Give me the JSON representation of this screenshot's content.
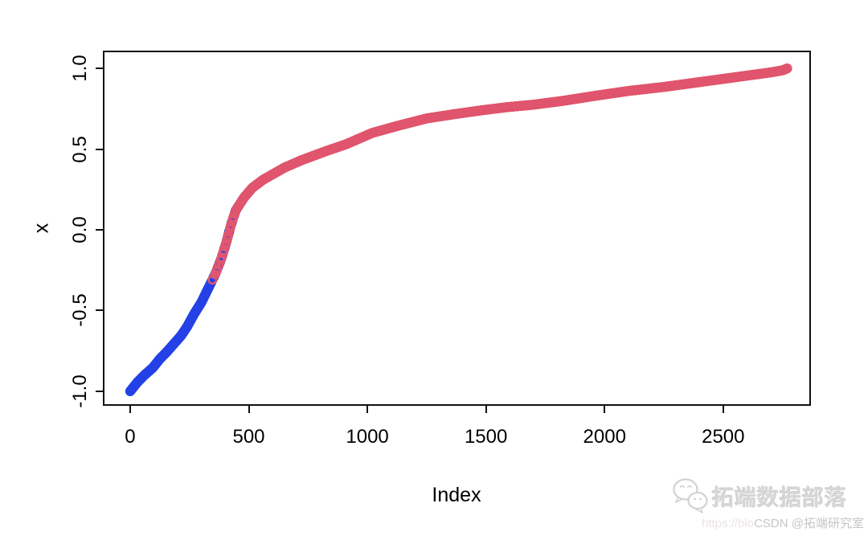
{
  "frame": {
    "border_color": "#111111",
    "background": "#ffffff"
  },
  "chart_data": {
    "type": "scatter",
    "title": "",
    "xlabel": "Index",
    "ylabel": "x",
    "grid": false,
    "legend": "none",
    "marker": "open-circle",
    "marker_radius": 4.8,
    "marker_stroke_width": 2.6,
    "xlim": [
      -115,
      2870
    ],
    "ylim": [
      -1.09,
      1.11
    ],
    "x_ticks": [
      {
        "value": 0,
        "label": "0"
      },
      {
        "value": 500,
        "label": "500"
      },
      {
        "value": 1000,
        "label": "1000"
      },
      {
        "value": 1500,
        "label": "1500"
      },
      {
        "value": 2000,
        "label": "2000"
      },
      {
        "value": 2500,
        "label": "2500"
      }
    ],
    "y_ticks": [
      {
        "value": -1.0,
        "label": "-1.0"
      },
      {
        "value": -0.5,
        "label": "-0.5"
      },
      {
        "value": 0.0,
        "label": "0.0"
      },
      {
        "value": 0.5,
        "label": "0.5"
      },
      {
        "value": 1.0,
        "label": "1.0"
      }
    ],
    "description": "Sorted values of x plotted against index; ~2770 points rising monotonically from -1 to 1. Lower segment drawn in blue, upper segment in rose-red, with the two colors interleaved around the sign-change region (index ~295-530).",
    "n_points": 2771,
    "color_mix_index_range": [
      295,
      530
    ],
    "series": [
      {
        "name": "lower-sorted-values",
        "color": "#2442E6"
      },
      {
        "name": "upper-sorted-values",
        "color": "#E0566E"
      }
    ],
    "curve_anchors": [
      [
        0,
        -1.0
      ],
      [
        30,
        -0.945
      ],
      [
        60,
        -0.9
      ],
      [
        95,
        -0.855
      ],
      [
        125,
        -0.8
      ],
      [
        155,
        -0.755
      ],
      [
        185,
        -0.705
      ],
      [
        215,
        -0.655
      ],
      [
        240,
        -0.6
      ],
      [
        270,
        -0.52
      ],
      [
        300,
        -0.45
      ],
      [
        330,
        -0.36
      ],
      [
        360,
        -0.27
      ],
      [
        385,
        -0.175
      ],
      [
        405,
        -0.08
      ],
      [
        425,
        0.03
      ],
      [
        445,
        0.12
      ],
      [
        480,
        0.2
      ],
      [
        515,
        0.26
      ],
      [
        560,
        0.31
      ],
      [
        650,
        0.385
      ],
      [
        720,
        0.43
      ],
      [
        830,
        0.49
      ],
      [
        910,
        0.53
      ],
      [
        1020,
        0.6
      ],
      [
        1130,
        0.645
      ],
      [
        1250,
        0.69
      ],
      [
        1360,
        0.715
      ],
      [
        1480,
        0.74
      ],
      [
        1590,
        0.76
      ],
      [
        1700,
        0.775
      ],
      [
        1830,
        0.8
      ],
      [
        1960,
        0.83
      ],
      [
        2100,
        0.86
      ],
      [
        2250,
        0.885
      ],
      [
        2400,
        0.915
      ],
      [
        2500,
        0.935
      ],
      [
        2600,
        0.955
      ],
      [
        2700,
        0.975
      ],
      [
        2750,
        0.988
      ],
      [
        2770,
        1.0
      ]
    ]
  },
  "watermark": {
    "icon": "wechat-bubbles-icon",
    "brand": "拓端数据部落",
    "line2_prefix": "https://blo",
    "line2_main": "CSDN @拓端研究室"
  }
}
